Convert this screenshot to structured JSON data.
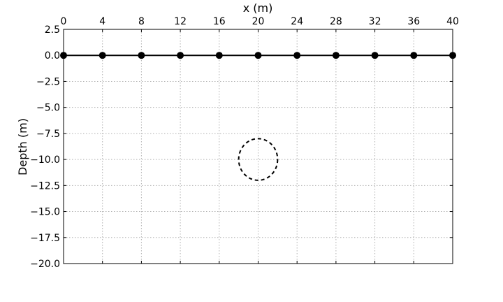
{
  "chart_data": {
    "type": "scatter",
    "xlabel": "x (m)",
    "ylabel": "Depth (m)",
    "xlim": [
      0,
      40
    ],
    "ylim": [
      -20,
      2.5
    ],
    "x_ticks": [
      0,
      4,
      8,
      12,
      16,
      20,
      24,
      28,
      32,
      36,
      40
    ],
    "y_ticks": [
      2.5,
      0.0,
      -2.5,
      -5.0,
      -7.5,
      -10.0,
      -12.5,
      -15.0,
      -17.5,
      -20.0
    ],
    "x_tick_labels": [
      "0",
      "4",
      "8",
      "12",
      "16",
      "20",
      "24",
      "28",
      "32",
      "36",
      "40"
    ],
    "y_tick_labels": [
      "2.5",
      "0.0",
      "−2.5",
      "−5.0",
      "−7.5",
      "−10.0",
      "−12.5",
      "−15.0",
      "−17.5",
      "−20.0"
    ],
    "x_axis_position": "top",
    "grid": true,
    "series": [
      {
        "style": "line-with-markers",
        "color": "#000000",
        "x": [
          0,
          4,
          8,
          12,
          16,
          20,
          24,
          28,
          32,
          36,
          40
        ],
        "y": [
          0,
          0,
          0,
          0,
          0,
          0,
          0,
          0,
          0,
          0,
          0
        ]
      }
    ],
    "annotations": [
      {
        "shape": "dashed-circle",
        "center": [
          20,
          -10
        ],
        "radius": 2,
        "color": "#000000"
      }
    ]
  }
}
